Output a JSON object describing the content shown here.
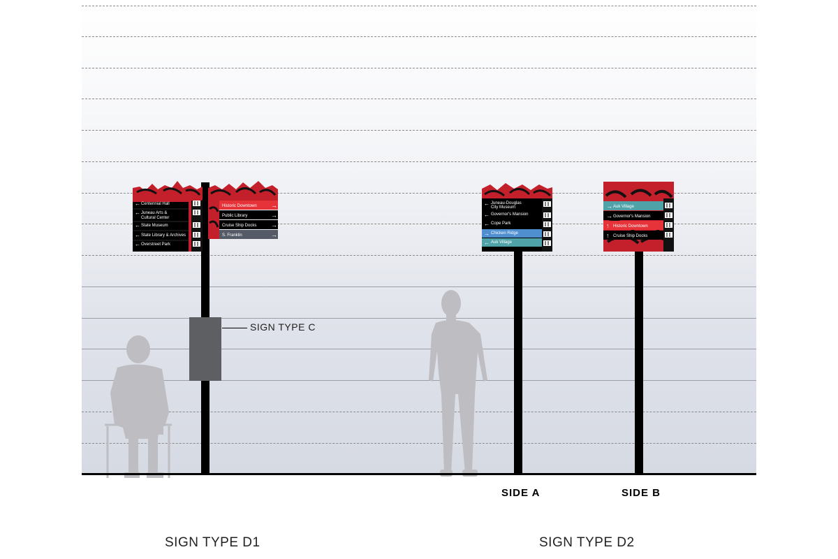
{
  "d1": {
    "left_panel": {
      "rows": [
        {
          "arrow": "←",
          "text": "Centennial Hall"
        },
        {
          "arrow": "←",
          "text": "Juneau Arts &",
          "text2": "Cultural Center"
        },
        {
          "arrow": "←",
          "text": "State Museum"
        },
        {
          "arrow": "←",
          "text": "State Library & Archives"
        },
        {
          "arrow": "←",
          "text": "Overstreet Park"
        }
      ]
    },
    "right_panel": {
      "rows": [
        {
          "text": "Historic Downtown",
          "arrow": "→",
          "color": "#e63339"
        },
        {
          "text": "Public Library",
          "arrow": "→",
          "color": "#000000"
        },
        {
          "text": "Cruise Ship Docks",
          "arrow": "→",
          "color": "#000000"
        },
        {
          "text": "S. Franklin",
          "arrow": "→",
          "color": "#555b66"
        }
      ]
    },
    "callout": "SIGN TYPE C",
    "label": "SIGN TYPE D1"
  },
  "d2": {
    "side_a": {
      "rows": [
        {
          "arrow": "←",
          "text": "Juneau-Douglas",
          "text2": "City Museum",
          "color": "#000000"
        },
        {
          "arrow": "←",
          "text": "Governor's Mansion",
          "color": "#000000"
        },
        {
          "arrow": "←",
          "text": "Cope Park",
          "color": "#000000"
        },
        {
          "arrow": "→",
          "text": "Chicken Ridge",
          "color": "#4f8fd0"
        },
        {
          "arrow": "←",
          "text": "Auk Village",
          "color": "#4fa3a8"
        }
      ],
      "label": "SIDE A"
    },
    "side_b": {
      "rows": [
        {
          "arrow": "→",
          "text": "Auk Village",
          "color": "#4fa3a8"
        },
        {
          "arrow": "→",
          "text": "Governor's Mansion",
          "color": "#000000"
        },
        {
          "arrow": "↑",
          "text": "Historic Downtown",
          "color": "#e63339"
        },
        {
          "arrow": "↑",
          "text": "Cruise Ship Docks",
          "color": "#000000"
        }
      ],
      "label": "SIDE B"
    },
    "label": "SIGN TYPE D2"
  },
  "colors": {
    "sign_red": "#c4202b",
    "sign_black": "#000000",
    "teal": "#4fa3a8",
    "blue": "#4f8fd0",
    "red_band": "#e63339",
    "person": "#bdbdc2"
  }
}
